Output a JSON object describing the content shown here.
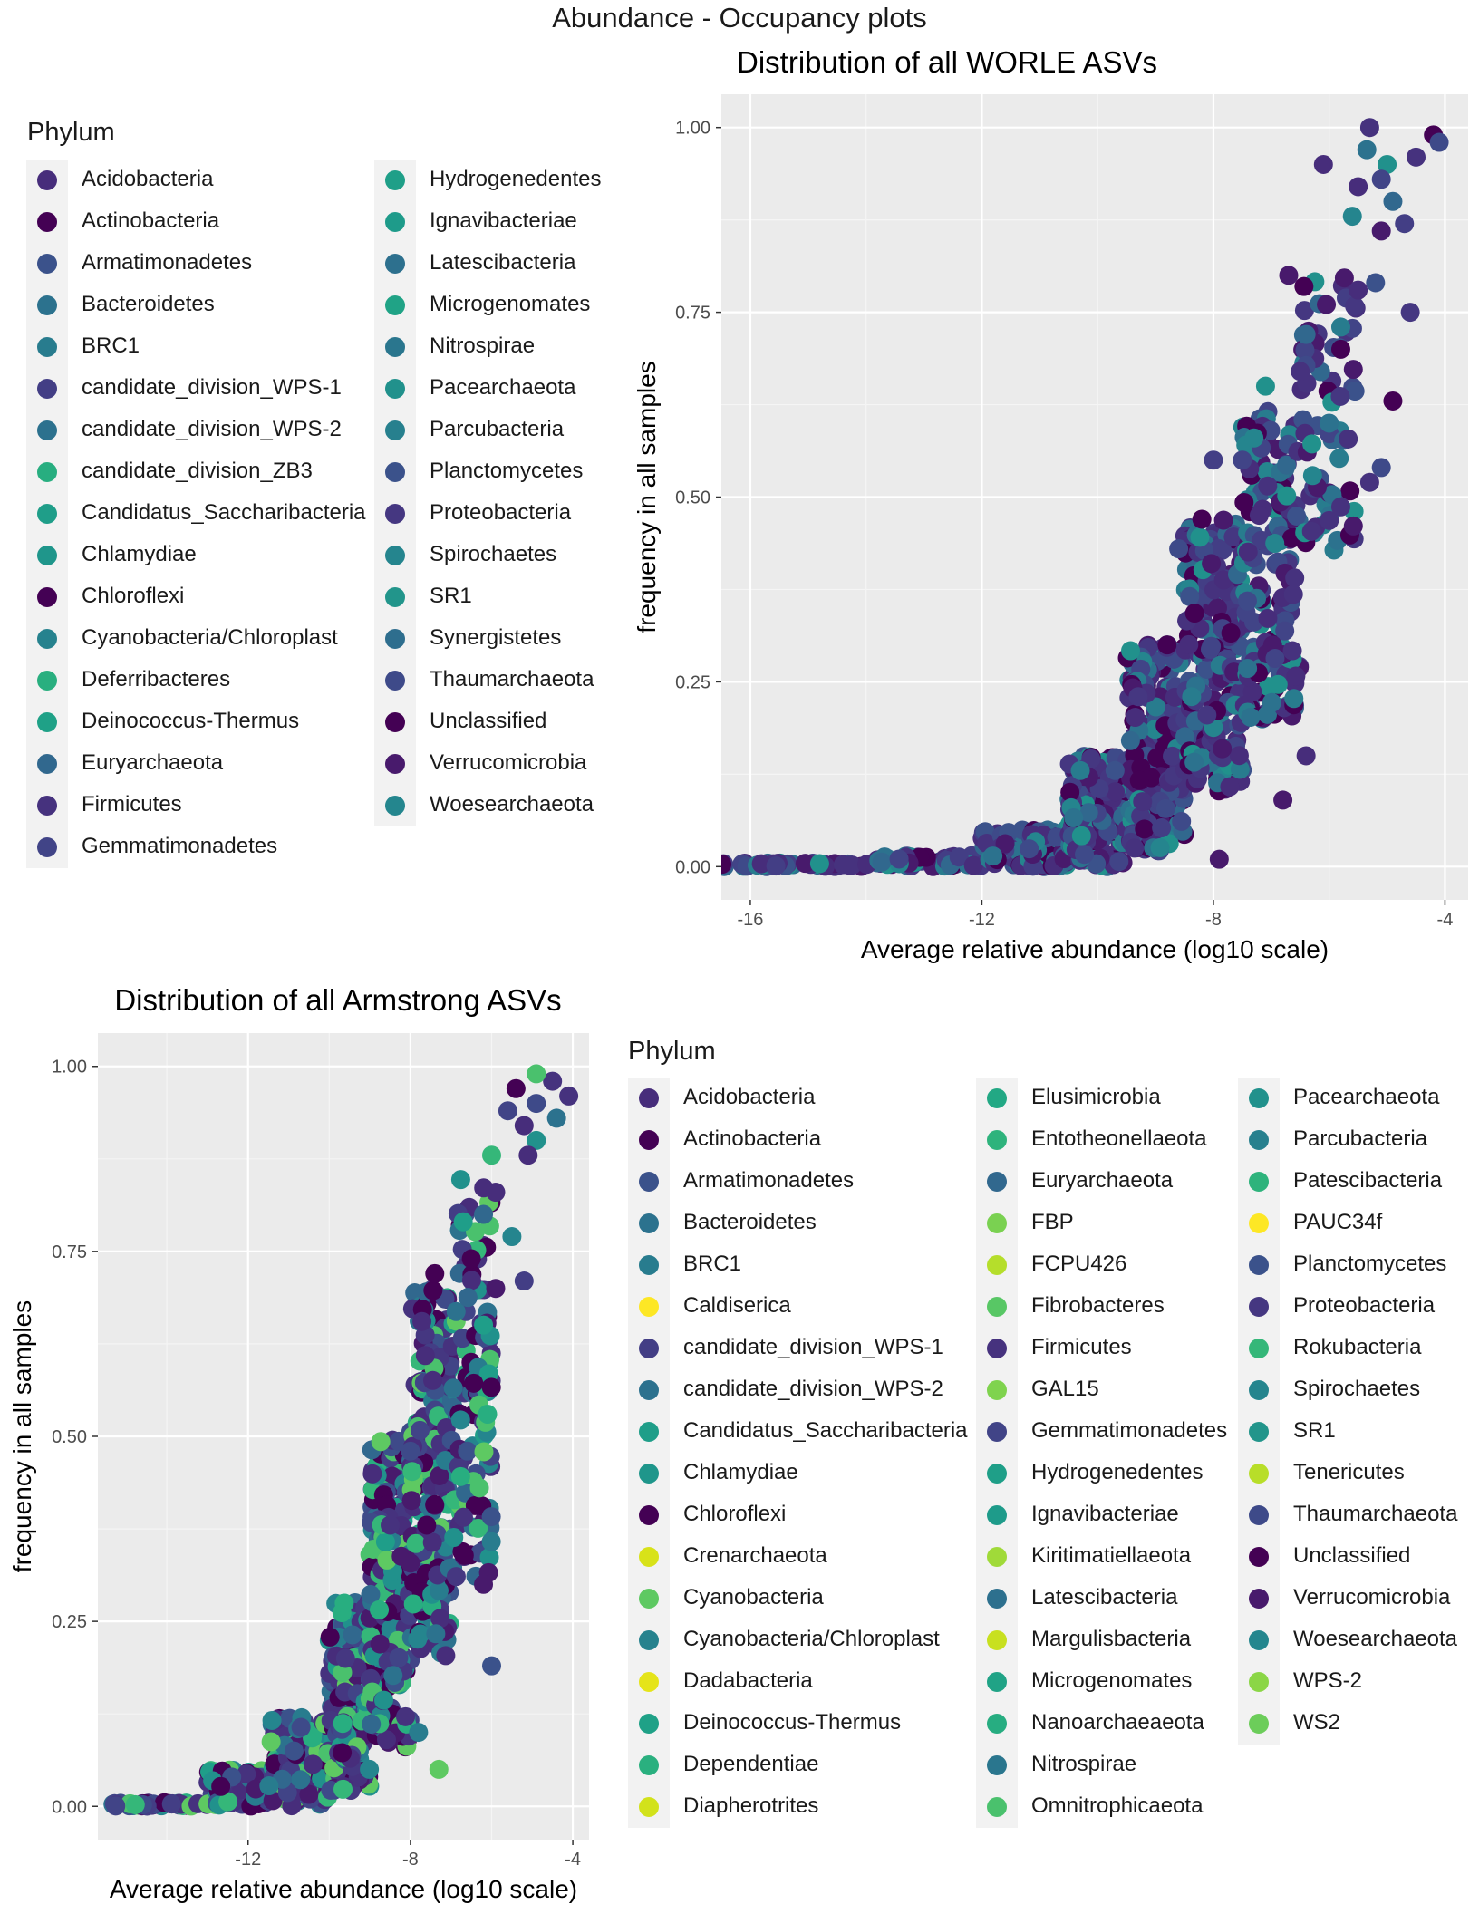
{
  "page_title": "Abundance - Occupancy plots",
  "colors": {
    "panel_background": "#ebebeb",
    "grid_major": "#ffffff",
    "grid_minor": "#f5f5f5",
    "axis_text": "#4d4d4d",
    "legend_key_background": "#f2f2f2"
  },
  "legend_worle": {
    "title": "Phylum",
    "items": [
      {
        "label": "Acidobacteria",
        "color": "#472d7b"
      },
      {
        "label": "Actinobacteria",
        "color": "#440154"
      },
      {
        "label": "Armatimonadetes",
        "color": "#3b528b"
      },
      {
        "label": "Bacteroidetes",
        "color": "#2c728e"
      },
      {
        "label": "BRC1",
        "color": "#287c8e"
      },
      {
        "label": "candidate_division_WPS-1",
        "color": "#433e85"
      },
      {
        "label": "candidate_division_WPS-2",
        "color": "#2c718e"
      },
      {
        "label": "candidate_division_ZB3",
        "color": "#28ae80"
      },
      {
        "label": "Candidatus_Saccharibacteria",
        "color": "#1f9e89"
      },
      {
        "label": "Chlamydiae",
        "color": "#1f968b"
      },
      {
        "label": "Chloroflexi",
        "color": "#440154"
      },
      {
        "label": "Cyanobacteria/Chloroplast",
        "color": "#26828e"
      },
      {
        "label": "Deferribacteres",
        "color": "#29af7f"
      },
      {
        "label": "Deinococcus-Thermus",
        "color": "#1fa187"
      },
      {
        "label": "Euryarchaeota",
        "color": "#31688e"
      },
      {
        "label": "Firmicutes",
        "color": "#46327e"
      },
      {
        "label": "Gemmatimonadetes",
        "color": "#414487"
      },
      {
        "label": "Hydrogenedentes",
        "color": "#1f9f88"
      },
      {
        "label": "Ignavibacteriae",
        "color": "#1e9b8a"
      },
      {
        "label": "Latescibacteria",
        "color": "#2d708e"
      },
      {
        "label": "Microgenomates",
        "color": "#20a386"
      },
      {
        "label": "Nitrospirae",
        "color": "#2a768e"
      },
      {
        "label": "Pacearchaeota",
        "color": "#21918c"
      },
      {
        "label": "Parcubacteria",
        "color": "#27808e"
      },
      {
        "label": "Planctomycetes",
        "color": "#3b528b"
      },
      {
        "label": "Proteobacteria",
        "color": "#453781"
      },
      {
        "label": "Spirochaetes",
        "color": "#25858e"
      },
      {
        "label": "SR1",
        "color": "#22958b"
      },
      {
        "label": "Synergistetes",
        "color": "#2e6e8e"
      },
      {
        "label": "Thaumarchaeota",
        "color": "#3e4a89"
      },
      {
        "label": "Unclassified",
        "color": "#440154"
      },
      {
        "label": "Verrucomicrobia",
        "color": "#481a6c"
      },
      {
        "label": "Woesearchaeota",
        "color": "#24868e"
      }
    ]
  },
  "legend_armstrong": {
    "title": "Phylum",
    "items": [
      {
        "label": "Acidobacteria",
        "color": "#472d7b"
      },
      {
        "label": "Actinobacteria",
        "color": "#440154"
      },
      {
        "label": "Armatimonadetes",
        "color": "#3b528b"
      },
      {
        "label": "Bacteroidetes",
        "color": "#2c728e"
      },
      {
        "label": "BRC1",
        "color": "#287c8e"
      },
      {
        "label": "Caldiserica",
        "color": "#fde725"
      },
      {
        "label": "candidate_division_WPS-1",
        "color": "#433e85"
      },
      {
        "label": "candidate_division_WPS-2",
        "color": "#2c718e"
      },
      {
        "label": "Candidatus_Saccharibacteria",
        "color": "#1f9e89"
      },
      {
        "label": "Chlamydiae",
        "color": "#1f968b"
      },
      {
        "label": "Chloroflexi",
        "color": "#440154"
      },
      {
        "label": "Crenarchaeota",
        "color": "#d8e219"
      },
      {
        "label": "Cyanobacteria",
        "color": "#5ec962"
      },
      {
        "label": "Cyanobacteria/Chloroplast",
        "color": "#26828e"
      },
      {
        "label": "Dadabacteria",
        "color": "#e5e419"
      },
      {
        "label": "Deinococcus-Thermus",
        "color": "#1fa187"
      },
      {
        "label": "Dependentiae",
        "color": "#2ab07f"
      },
      {
        "label": "Diapherotrites",
        "color": "#d2e21b"
      },
      {
        "label": "Elusimicrobia",
        "color": "#22a884"
      },
      {
        "label": "Entotheonellaeota",
        "color": "#2eb37c"
      },
      {
        "label": "Euryarchaeota",
        "color": "#31688e"
      },
      {
        "label": "FBP",
        "color": "#7ad151"
      },
      {
        "label": "FCPU426",
        "color": "#b5de2b"
      },
      {
        "label": "Fibrobacteres",
        "color": "#58c765"
      },
      {
        "label": "Firmicutes",
        "color": "#46327e"
      },
      {
        "label": "GAL15",
        "color": "#7fd34e"
      },
      {
        "label": "Gemmatimonadetes",
        "color": "#414487"
      },
      {
        "label": "Hydrogenedentes",
        "color": "#1f9f88"
      },
      {
        "label": "Ignavibacteriae",
        "color": "#1e9b8a"
      },
      {
        "label": "Kiritimatiellaeota",
        "color": "#a0da39"
      },
      {
        "label": "Latescibacteria",
        "color": "#2d708e"
      },
      {
        "label": "Margulisbacteria",
        "color": "#c8e020"
      },
      {
        "label": "Microgenomates",
        "color": "#20a386"
      },
      {
        "label": "Nanoarchaeaeota",
        "color": "#27ad81"
      },
      {
        "label": "Nitrospirae",
        "color": "#2a768e"
      },
      {
        "label": "Omnitrophicaeota",
        "color": "#4ac16d"
      },
      {
        "label": "Pacearchaeota",
        "color": "#21918c"
      },
      {
        "label": "Parcubacteria",
        "color": "#27808e"
      },
      {
        "label": "Patescibacteria",
        "color": "#2eb37c"
      },
      {
        "label": "PAUC34f",
        "color": "#fde725"
      },
      {
        "label": "Planctomycetes",
        "color": "#3b528b"
      },
      {
        "label": "Proteobacteria",
        "color": "#453781"
      },
      {
        "label": "Rokubacteria",
        "color": "#35b779"
      },
      {
        "label": "Spirochaetes",
        "color": "#25858e"
      },
      {
        "label": "SR1",
        "color": "#22958b"
      },
      {
        "label": "Tenericutes",
        "color": "#b8de29"
      },
      {
        "label": "Thaumarchaeota",
        "color": "#3e4a89"
      },
      {
        "label": "Unclassified",
        "color": "#440154"
      },
      {
        "label": "Verrucomicrobia",
        "color": "#481a6c"
      },
      {
        "label": "Woesearchaeota",
        "color": "#24868e"
      },
      {
        "label": "WPS-2",
        "color": "#8bd646"
      },
      {
        "label": "WS2",
        "color": "#6ccd5a"
      }
    ]
  },
  "chart_data": [
    {
      "type": "scatter",
      "title": "Distribution of all WORLE ASVs",
      "xlabel": "Average relative abundance (log10 scale)",
      "ylabel": "frequency in all samples",
      "xlim": [
        -16.5,
        -3.6
      ],
      "ylim": [
        -0.045,
        1.045
      ],
      "x_ticks": [
        -16,
        -12,
        -8,
        -4
      ],
      "x_tick_labels": [
        "-16",
        "-12",
        "-8",
        "-4"
      ],
      "y_ticks": [
        0,
        0.25,
        0.5,
        0.75,
        1
      ],
      "y_tick_labels": [
        "0.00",
        "0.25",
        "0.50",
        "0.75",
        "1.00"
      ],
      "grid": true,
      "legend_position": "left",
      "color_by": "Phylum",
      "points": [
        [
          -4.2,
          0.99
        ],
        [
          -4.1,
          0.98
        ],
        [
          -4.5,
          0.96
        ],
        [
          -5.3,
          1.0
        ],
        [
          -5.35,
          0.97
        ],
        [
          -5.0,
          0.95
        ],
        [
          -5.1,
          0.93
        ],
        [
          -5.5,
          0.92
        ],
        [
          -6.1,
          0.95
        ],
        [
          -4.9,
          0.9
        ],
        [
          -5.6,
          0.88
        ],
        [
          -4.7,
          0.87
        ],
        [
          -5.1,
          0.86
        ],
        [
          -6.7,
          0.8
        ],
        [
          -5.2,
          0.79
        ],
        [
          -5.8,
          0.73
        ],
        [
          -4.6,
          0.75
        ],
        [
          -5.8,
          0.7
        ],
        [
          -4.9,
          0.63
        ],
        [
          -5.1,
          0.54
        ],
        [
          -5.3,
          0.52
        ],
        [
          -6.5,
          0.67
        ],
        [
          -6.0,
          0.6
        ],
        [
          -7.1,
          0.65
        ],
        [
          -7.5,
          0.55
        ],
        [
          -6.4,
          0.15
        ],
        [
          -5.5,
          0.78
        ],
        [
          -6.4,
          0.72
        ],
        [
          -7.3,
          0.58
        ],
        [
          -8.0,
          0.55
        ],
        [
          -6.8,
          0.09
        ],
        [
          -7.9,
          0.01
        ],
        [
          -9.7,
          0.13
        ],
        [
          -10.3,
          0.13
        ],
        [
          -9.3,
          0.23
        ],
        [
          -8.8,
          0.3
        ],
        [
          -8.2,
          0.47
        ],
        [
          -8.6,
          0.43
        ]
      ],
      "bands": [
        {
          "x_range": [
            -16.5,
            -14.0
          ],
          "y_range": [
            0.0,
            0.005
          ],
          "n": 40
        },
        {
          "x_range": [
            -14.0,
            -12.0
          ],
          "y_range": [
            0.0,
            0.015
          ],
          "n": 55
        },
        {
          "x_range": [
            -12.0,
            -10.5
          ],
          "y_range": [
            0.0,
            0.05
          ],
          "n": 110
        },
        {
          "x_range": [
            -10.5,
            -9.5
          ],
          "y_range": [
            0.0,
            0.15
          ],
          "n": 170
        },
        {
          "x_range": [
            -9.5,
            -8.5
          ],
          "y_range": [
            0.02,
            0.3
          ],
          "n": 230
        },
        {
          "x_range": [
            -8.5,
            -7.5
          ],
          "y_range": [
            0.1,
            0.47
          ],
          "n": 230
        },
        {
          "x_range": [
            -7.5,
            -6.5
          ],
          "y_range": [
            0.2,
            0.62
          ],
          "n": 170
        },
        {
          "x_range": [
            -6.5,
            -5.5
          ],
          "y_range": [
            0.42,
            0.8
          ],
          "n": 70
        }
      ]
    },
    {
      "type": "scatter",
      "title": "Distribution of all Armstrong ASVs",
      "xlabel": "Average relative abundance (log10 scale)",
      "ylabel": "frequency in all samples",
      "xlim": [
        -15.7,
        -3.6
      ],
      "ylim": [
        -0.045,
        1.045
      ],
      "x_ticks": [
        -12,
        -8,
        -4
      ],
      "x_tick_labels": [
        "-12",
        "-8",
        "-4"
      ],
      "y_ticks": [
        0,
        0.25,
        0.5,
        0.75,
        1
      ],
      "y_tick_labels": [
        "0.00",
        "0.25",
        "0.50",
        "0.75",
        "1.00"
      ],
      "grid": true,
      "legend_position": "right",
      "color_by": "Phylum",
      "points": [
        [
          -5.4,
          0.97
        ],
        [
          -4.9,
          0.95
        ],
        [
          -4.5,
          0.98
        ],
        [
          -4.9,
          0.99
        ],
        [
          -4.1,
          0.96
        ],
        [
          -4.4,
          0.93
        ],
        [
          -4.9,
          0.9
        ],
        [
          -5.2,
          0.92
        ],
        [
          -5.6,
          0.94
        ],
        [
          -5.1,
          0.88
        ],
        [
          -6.0,
          0.88
        ],
        [
          -5.9,
          0.83
        ],
        [
          -6.2,
          0.8
        ],
        [
          -5.5,
          0.77
        ],
        [
          -6.5,
          0.74
        ],
        [
          -5.2,
          0.71
        ],
        [
          -5.9,
          0.7
        ],
        [
          -6.1,
          0.53
        ],
        [
          -6.2,
          0.3
        ],
        [
          -6.0,
          0.19
        ],
        [
          -7.8,
          0.1
        ],
        [
          -7.3,
          0.05
        ],
        [
          -9.6,
          0.2
        ],
        [
          -7.6,
          0.38
        ],
        [
          -6.7,
          0.79
        ],
        [
          -7.4,
          0.72
        ],
        [
          -8.0,
          0.48
        ],
        [
          -8.5,
          0.38
        ]
      ],
      "bands": [
        {
          "x_range": [
            -15.5,
            -13.0
          ],
          "y_range": [
            0.0,
            0.005
          ],
          "n": 40
        },
        {
          "x_range": [
            -13.0,
            -11.5
          ],
          "y_range": [
            0.0,
            0.05
          ],
          "n": 80
        },
        {
          "x_range": [
            -11.5,
            -10.0
          ],
          "y_range": [
            0.0,
            0.12
          ],
          "n": 140
        },
        {
          "x_range": [
            -10.0,
            -9.0
          ],
          "y_range": [
            0.02,
            0.28
          ],
          "n": 170
        },
        {
          "x_range": [
            -9.0,
            -8.0
          ],
          "y_range": [
            0.08,
            0.5
          ],
          "n": 200
        },
        {
          "x_range": [
            -8.0,
            -7.0
          ],
          "y_range": [
            0.2,
            0.7
          ],
          "n": 190
        },
        {
          "x_range": [
            -7.0,
            -6.0
          ],
          "y_range": [
            0.3,
            0.85
          ],
          "n": 120
        }
      ]
    }
  ]
}
